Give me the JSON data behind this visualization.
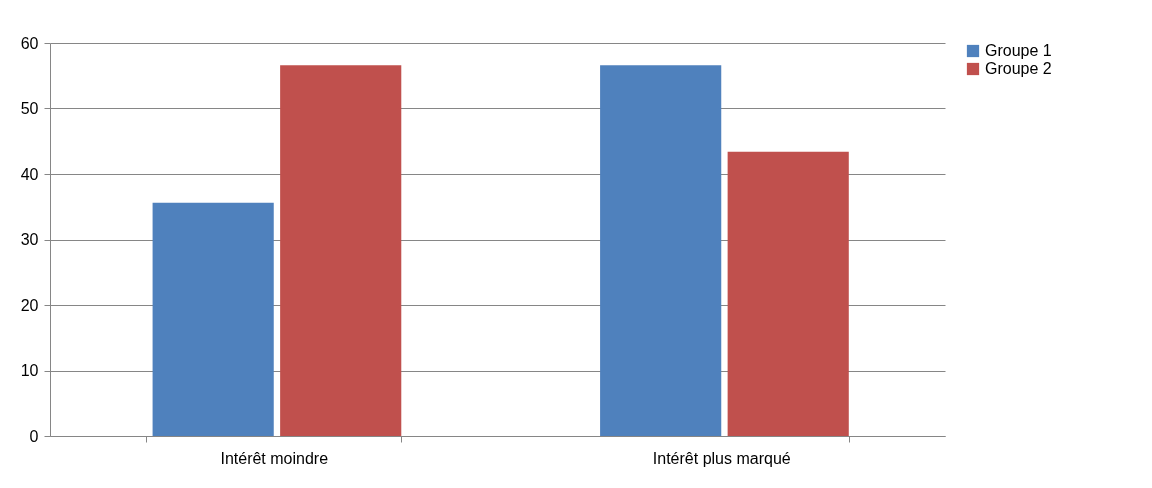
{
  "chart_data": {
    "type": "bar",
    "categories": [
      "Intérêt moindre",
      "Intérêt plus marqué"
    ],
    "series": [
      {
        "name": "Groupe 1",
        "color": "#4f81bd",
        "values": [
          35.6,
          56.6
        ]
      },
      {
        "name": "Groupe 2",
        "color": "#c0504d",
        "values": [
          56.6,
          43.4
        ]
      }
    ],
    "ylim": [
      0,
      60
    ],
    "yticks": [
      0,
      10,
      20,
      30,
      40,
      50,
      60
    ],
    "grid": "y",
    "legend": "right"
  }
}
